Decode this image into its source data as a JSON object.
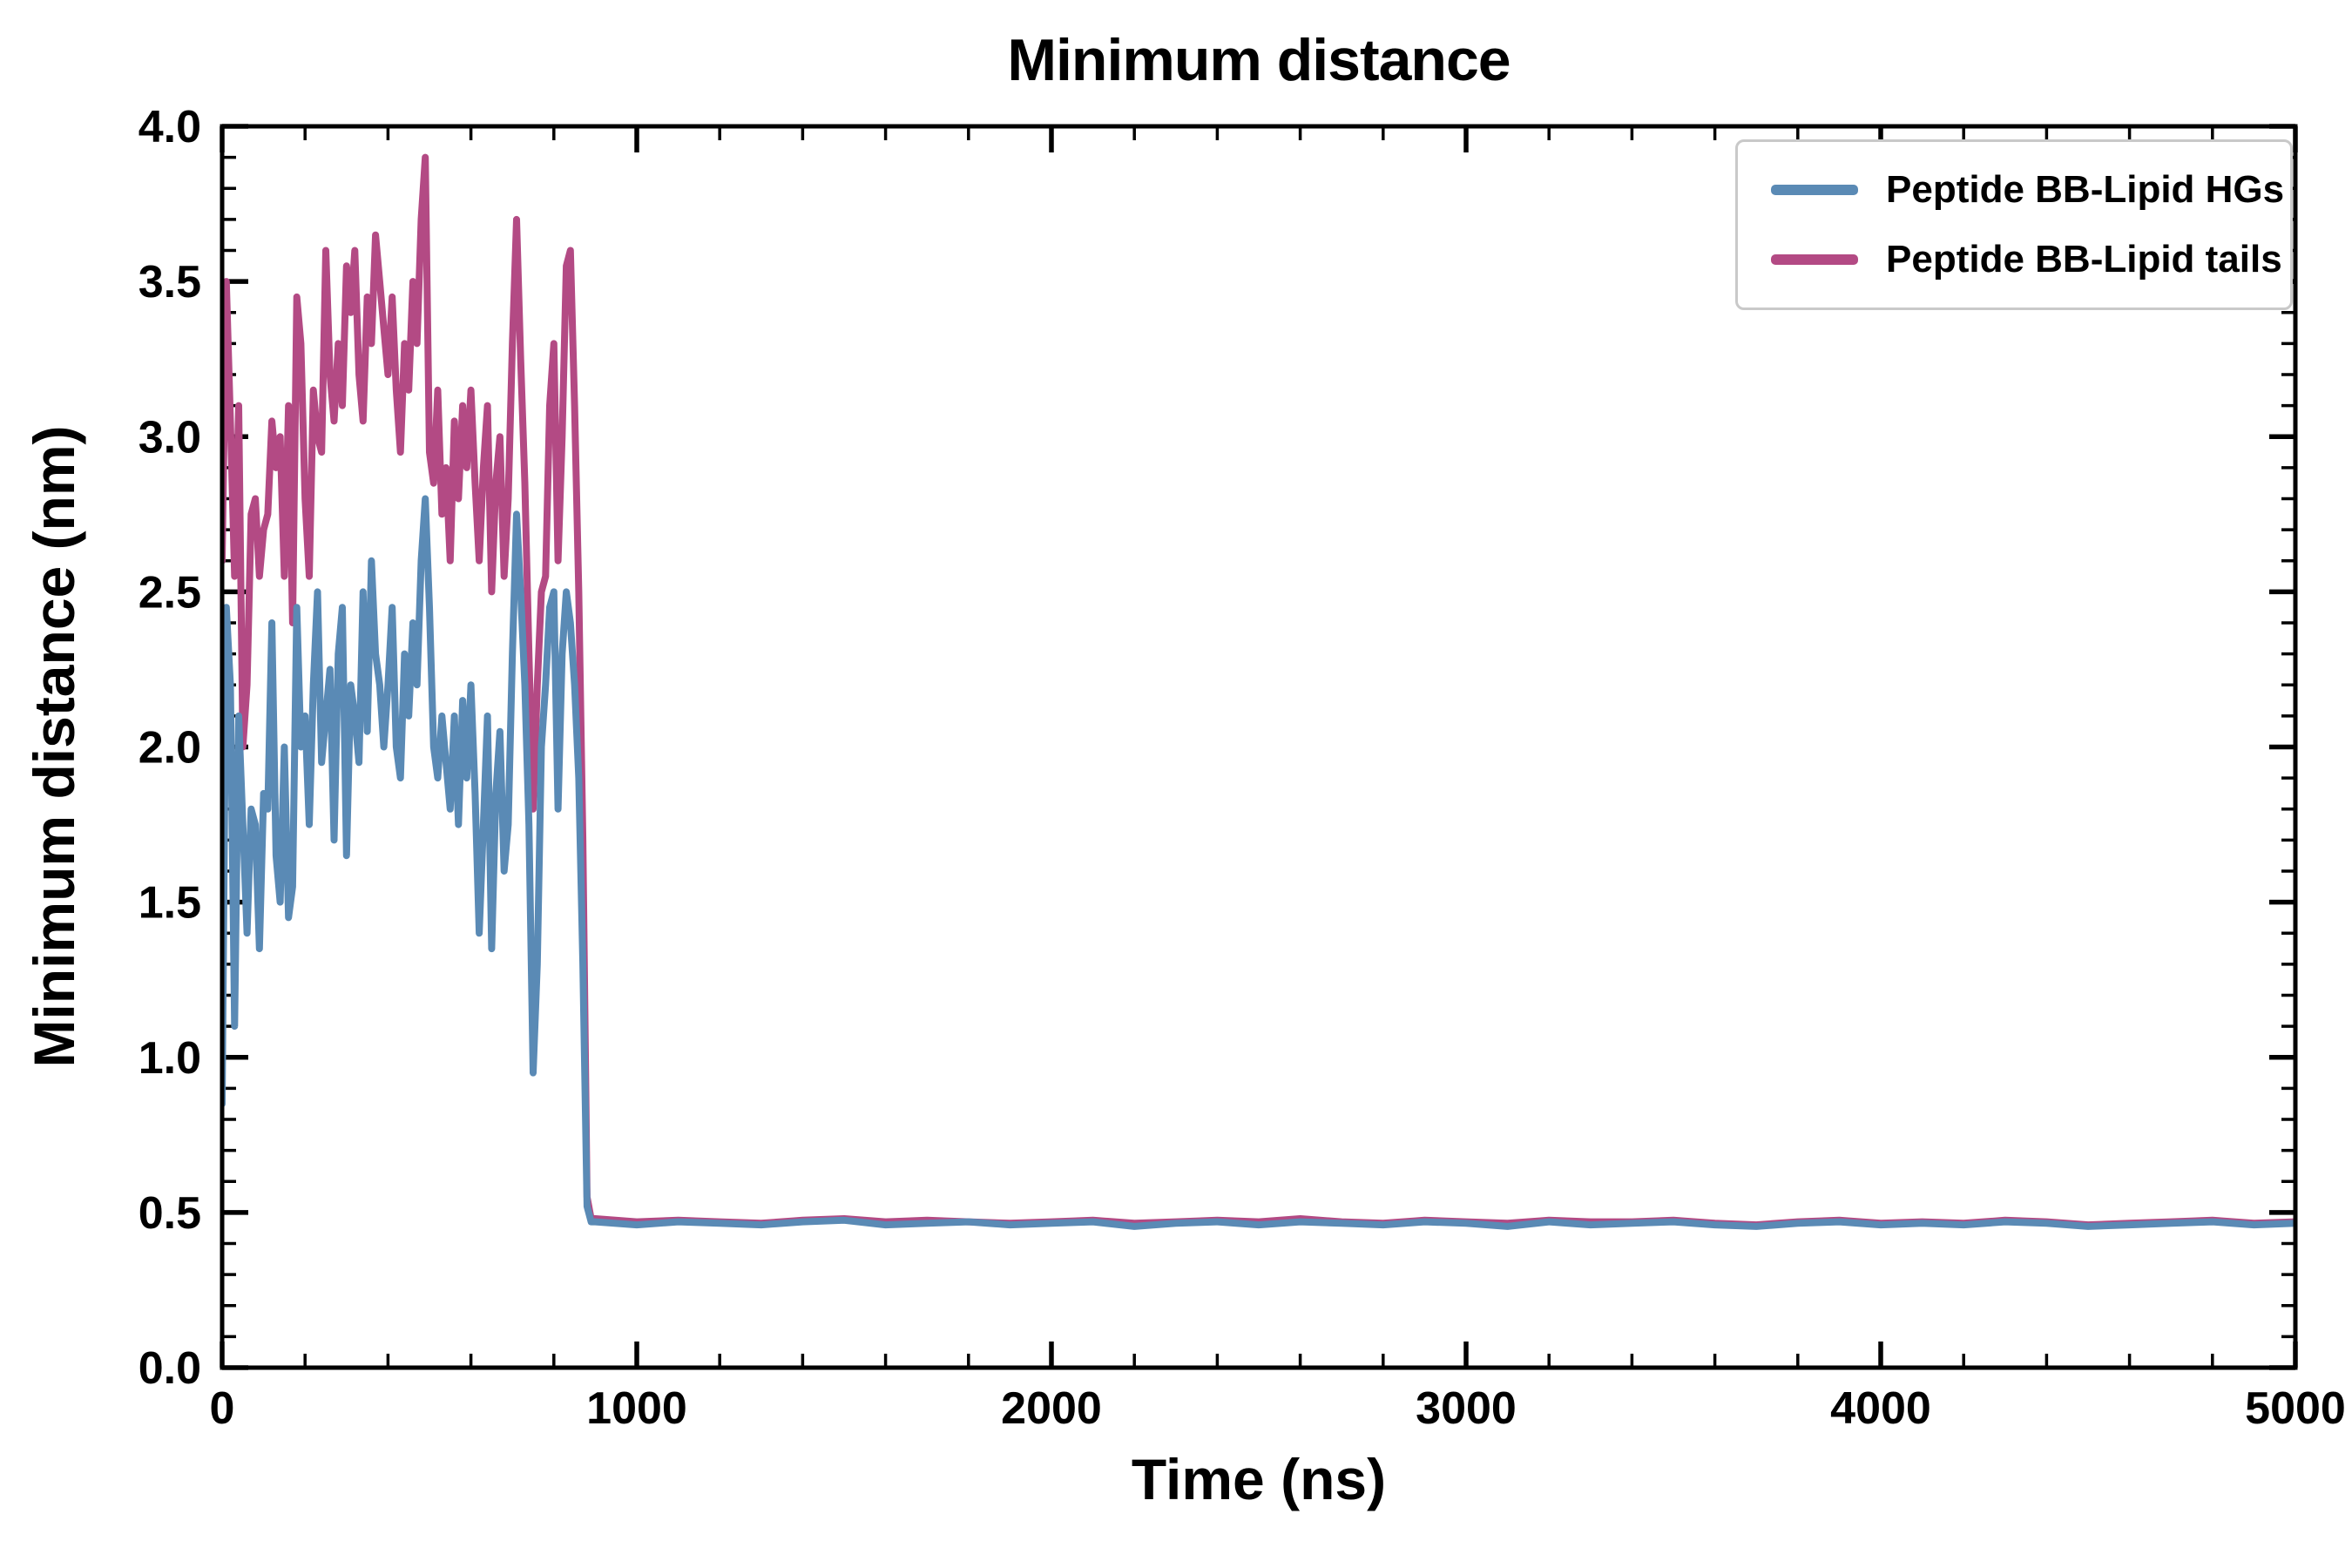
{
  "chart_data": {
    "type": "line",
    "title": "Minimum distance",
    "xlabel": "Time (ns)",
    "ylabel": "Minimum distance (nm)",
    "xlim": [
      0,
      5000
    ],
    "ylim": [
      0.0,
      4.0
    ],
    "grid": false,
    "legend_position": "upper right",
    "axis_color": "#000000",
    "xticks": {
      "values": [
        0,
        1000,
        2000,
        3000,
        4000,
        5000
      ],
      "labels": [
        "0",
        "1000",
        "2000",
        "3000",
        "4000",
        "5000"
      ]
    },
    "yticks": {
      "values": [
        0.0,
        0.5,
        1.0,
        1.5,
        2.0,
        2.5,
        3.0,
        3.5,
        4.0
      ],
      "labels": [
        "0.0",
        "0.5",
        "1.0",
        "1.5",
        "2.0",
        "2.5",
        "3.0",
        "3.5",
        "4.0"
      ]
    },
    "x_minor_step": 200,
    "y_minor_step": 0.1,
    "x": [
      0,
      10,
      20,
      30,
      40,
      50,
      60,
      70,
      80,
      90,
      100,
      110,
      120,
      130,
      140,
      150,
      160,
      170,
      180,
      190,
      200,
      210,
      220,
      230,
      240,
      250,
      260,
      270,
      280,
      290,
      300,
      310,
      320,
      330,
      340,
      350,
      360,
      370,
      380,
      390,
      400,
      410,
      420,
      430,
      440,
      450,
      460,
      470,
      480,
      490,
      500,
      510,
      520,
      530,
      540,
      550,
      560,
      570,
      580,
      590,
      600,
      610,
      620,
      630,
      640,
      650,
      660,
      670,
      680,
      690,
      700,
      710,
      720,
      730,
      740,
      750,
      760,
      770,
      780,
      790,
      800,
      810,
      820,
      830,
      840,
      850,
      860,
      870,
      880,
      890,
      900,
      1000,
      1100,
      1200,
      1300,
      1400,
      1500,
      1600,
      1700,
      1800,
      1900,
      2000,
      2100,
      2200,
      2300,
      2400,
      2500,
      2600,
      2700,
      2800,
      2900,
      3000,
      3100,
      3200,
      3300,
      3400,
      3500,
      3600,
      3700,
      3800,
      3900,
      4000,
      4100,
      4200,
      4300,
      4400,
      4500,
      4600,
      4700,
      4800,
      4900,
      5000
    ],
    "series": [
      {
        "name": "Peptide BB-Lipid HGs",
        "color": "#5a8ab5",
        "values": [
          0.85,
          2.45,
          2.2,
          1.1,
          2.1,
          1.75,
          1.4,
          1.8,
          1.75,
          1.35,
          1.85,
          1.8,
          2.4,
          1.65,
          1.5,
          2.0,
          1.45,
          1.55,
          2.45,
          2.0,
          2.1,
          1.75,
          2.2,
          2.5,
          1.95,
          2.1,
          2.25,
          1.7,
          2.3,
          2.45,
          1.65,
          2.2,
          2.1,
          1.95,
          2.5,
          2.05,
          2.6,
          2.3,
          2.2,
          2.0,
          2.2,
          2.45,
          2.0,
          1.9,
          2.3,
          2.1,
          2.4,
          2.2,
          2.6,
          2.8,
          2.45,
          2.0,
          1.9,
          2.1,
          1.95,
          1.8,
          2.1,
          1.75,
          2.15,
          1.9,
          2.2,
          1.85,
          1.4,
          1.75,
          2.1,
          1.35,
          1.85,
          2.05,
          1.6,
          1.75,
          2.3,
          2.75,
          2.5,
          2.2,
          1.75,
          0.95,
          1.3,
          2.0,
          2.2,
          2.45,
          2.5,
          1.8,
          2.3,
          2.5,
          2.4,
          2.2,
          1.9,
          1.3,
          0.52,
          0.47,
          0.47,
          0.46,
          0.47,
          0.465,
          0.46,
          0.47,
          0.475,
          0.46,
          0.465,
          0.47,
          0.46,
          0.465,
          0.47,
          0.455,
          0.465,
          0.47,
          0.46,
          0.47,
          0.465,
          0.46,
          0.47,
          0.465,
          0.455,
          0.47,
          0.46,
          0.465,
          0.47,
          0.46,
          0.455,
          0.465,
          0.47,
          0.46,
          0.465,
          0.46,
          0.47,
          0.465,
          0.455,
          0.46,
          0.465,
          0.47,
          0.46,
          0.465
        ]
      },
      {
        "name": "Peptide BB-Lipid tails",
        "color": "#b34a84",
        "values": [
          2.6,
          3.5,
          3.05,
          2.55,
          3.1,
          2.0,
          2.2,
          2.75,
          2.8,
          2.55,
          2.7,
          2.75,
          3.05,
          2.9,
          3.0,
          2.55,
          3.1,
          2.4,
          3.45,
          3.3,
          2.8,
          2.55,
          3.15,
          3.0,
          2.95,
          3.6,
          3.2,
          3.05,
          3.3,
          3.1,
          3.55,
          3.4,
          3.6,
          3.2,
          3.05,
          3.45,
          3.3,
          3.65,
          3.5,
          3.35,
          3.2,
          3.45,
          3.15,
          2.95,
          3.3,
          3.15,
          3.5,
          3.3,
          3.7,
          3.9,
          2.95,
          2.85,
          3.15,
          2.75,
          2.9,
          2.6,
          3.05,
          2.8,
          3.1,
          2.9,
          3.15,
          2.85,
          2.6,
          2.9,
          3.1,
          2.5,
          2.85,
          3.0,
          2.55,
          2.8,
          3.3,
          3.7,
          3.25,
          2.85,
          2.3,
          1.8,
          2.2,
          2.5,
          2.55,
          3.1,
          3.3,
          2.6,
          3.0,
          3.55,
          3.6,
          3.1,
          2.5,
          1.7,
          0.55,
          0.48,
          0.48,
          0.47,
          0.475,
          0.47,
          0.465,
          0.475,
          0.48,
          0.47,
          0.475,
          0.47,
          0.465,
          0.47,
          0.475,
          0.465,
          0.47,
          0.475,
          0.47,
          0.48,
          0.47,
          0.465,
          0.475,
          0.47,
          0.465,
          0.475,
          0.47,
          0.47,
          0.475,
          0.465,
          0.46,
          0.47,
          0.475,
          0.465,
          0.47,
          0.465,
          0.475,
          0.47,
          0.46,
          0.465,
          0.47,
          0.475,
          0.465,
          0.47
        ]
      }
    ]
  }
}
